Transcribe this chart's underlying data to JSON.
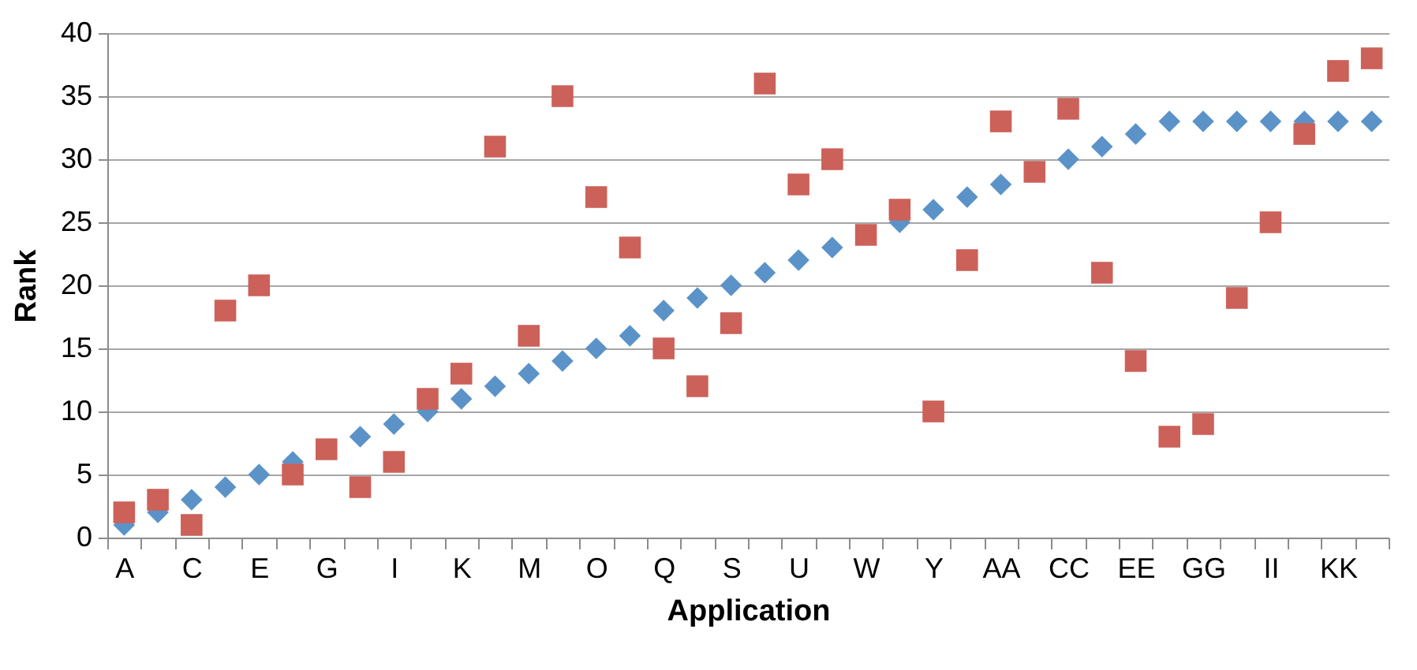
{
  "chart_data": {
    "type": "scatter",
    "xlabel": "Application",
    "ylabel": "Rank",
    "categories": [
      "A",
      null,
      "C",
      null,
      "E",
      null,
      "G",
      null,
      "I",
      null,
      "K",
      null,
      "M",
      null,
      "O",
      null,
      "Q",
      null,
      "S",
      null,
      "U",
      null,
      "W",
      null,
      "Y",
      null,
      "AA",
      null,
      "CC",
      null,
      "EE",
      null,
      "GG",
      null,
      "II",
      null,
      "KK",
      null
    ],
    "series": [
      {
        "color": "#5b93c8",
        "marker": "diamond",
        "values": [
          1,
          2,
          3,
          4,
          5,
          6,
          null,
          8,
          9,
          10,
          11,
          12,
          13,
          14,
          15,
          16,
          18,
          19,
          20,
          21,
          22,
          23,
          null,
          25,
          26,
          27,
          28,
          null,
          30,
          31,
          32,
          33,
          33,
          33,
          33,
          33,
          33,
          33
        ]
      },
      {
        "color": "#cc6159",
        "marker": "square",
        "values": [
          2,
          3,
          1,
          18,
          20,
          5,
          7,
          4,
          6,
          11,
          13,
          31,
          16,
          35,
          27,
          23,
          15,
          12,
          17,
          36,
          28,
          30,
          24,
          26,
          10,
          22,
          33,
          29,
          34,
          21,
          14,
          8,
          9,
          19,
          25,
          32,
          37,
          38
        ]
      }
    ],
    "ylim": [
      0,
      40
    ],
    "yticks": [
      0,
      5,
      10,
      15,
      20,
      25,
      30,
      35,
      40
    ],
    "grid": "y"
  }
}
